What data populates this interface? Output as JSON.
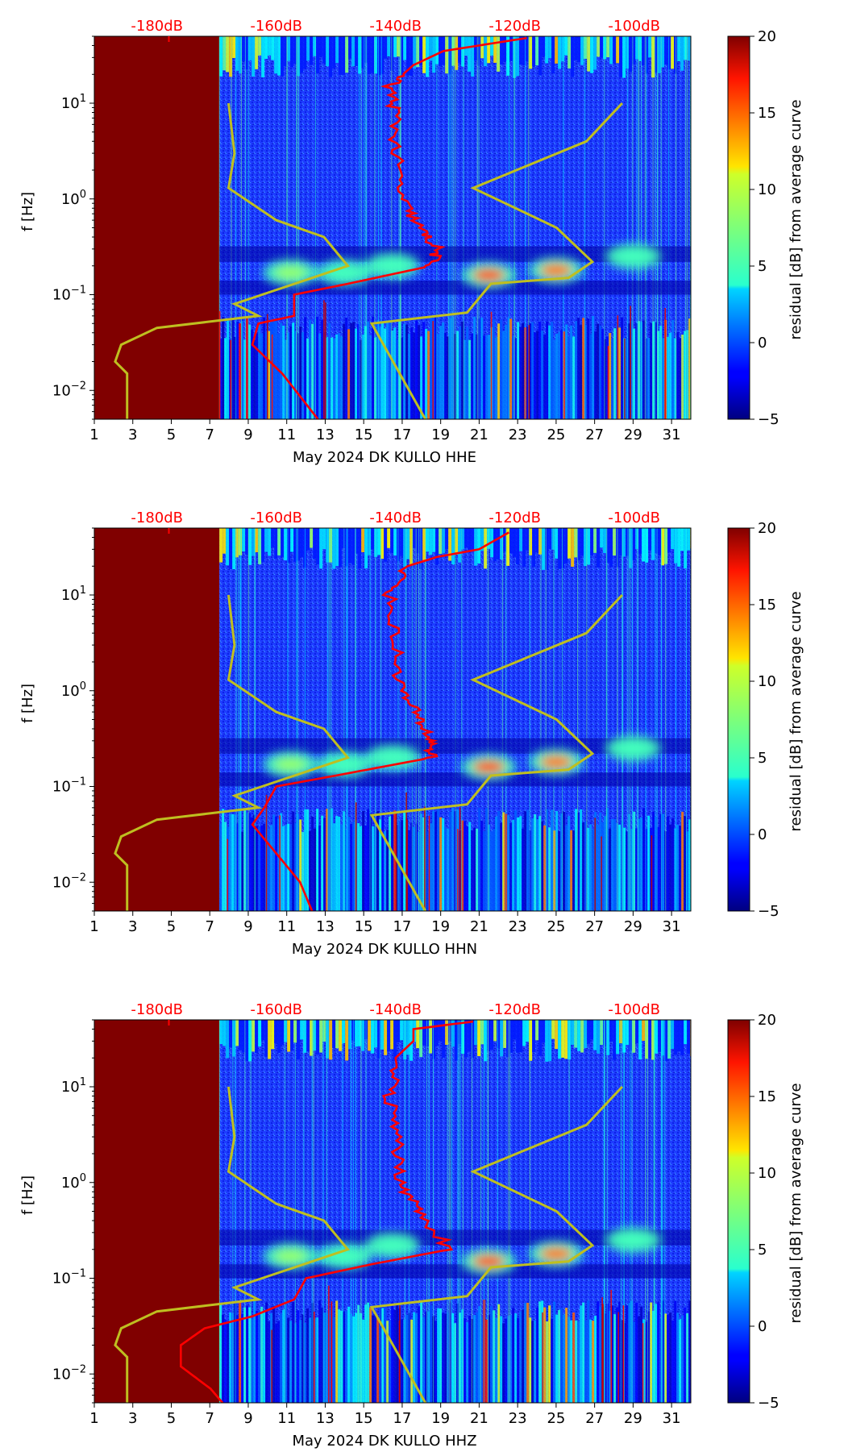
{
  "chart_data": [
    {
      "type": "heatmap",
      "channel": "HHE",
      "xlabel": "May 2024 DK KULLO  HHE",
      "ylabel": "f [Hz]",
      "xlim": [
        1,
        32
      ],
      "ylim_hz": [
        0.005,
        50
      ],
      "yscale": "log",
      "x_ticks": [
        "1",
        "3",
        "5",
        "7",
        "9",
        "11",
        "13",
        "15",
        "17",
        "19",
        "21",
        "23",
        "25",
        "27",
        "29",
        "31"
      ],
      "y_ticks": [
        {
          "base": "10",
          "exp": "1",
          "value": 10
        },
        {
          "base": "10",
          "exp": "0",
          "value": 1
        },
        {
          "base": "10",
          "exp": "−1",
          "value": 0.1
        },
        {
          "base": "10",
          "exp": "−2",
          "value": 0.01
        }
      ],
      "top_axis_ticks": [
        "-180dB",
        "-160dB",
        "-140dB",
        "-120dB",
        "-100dB"
      ],
      "top_axis_db_values": [
        -180,
        -160,
        -140,
        -120,
        -100
      ],
      "data_start_day": 7.5,
      "colorbar": {
        "label": "residual [dB] from average curve",
        "min": -5,
        "max": 20,
        "ticks": [
          "−5",
          "0",
          "5",
          "10",
          "15",
          "20"
        ],
        "tick_values": [
          -5,
          0,
          5,
          10,
          15,
          20
        ]
      },
      "hot_spots": [
        {
          "day": 11.2,
          "hz": 0.17,
          "level": 8
        },
        {
          "day": 14.0,
          "hz": 0.17,
          "level": 6
        },
        {
          "day": 16.5,
          "hz": 0.2,
          "level": 6
        },
        {
          "day": 21.5,
          "hz": 0.16,
          "level": 15
        },
        {
          "day": 25.0,
          "hz": 0.18,
          "level": 14
        },
        {
          "day": 29.0,
          "hz": 0.25,
          "level": 6
        }
      ],
      "yellow_curve_db_hz": [
        {
          "db": -168,
          "hz": 10
        },
        {
          "db": -167,
          "hz": 3
        },
        {
          "db": -168,
          "hz": 1.3
        },
        {
          "db": -160,
          "hz": 0.6
        },
        {
          "db": -152,
          "hz": 0.4
        },
        {
          "db": -148,
          "hz": 0.2
        },
        {
          "db": -167,
          "hz": 0.08
        },
        {
          "db": -163,
          "hz": 0.06
        },
        {
          "db": -180,
          "hz": 0.045
        },
        {
          "db": -186,
          "hz": 0.03
        },
        {
          "db": -187,
          "hz": 0.02
        },
        {
          "db": -185,
          "hz": 0.015
        },
        {
          "db": -185,
          "hz": 0.005
        },
        {
          "db": -102,
          "hz": 10
        },
        {
          "db": -108,
          "hz": 4
        },
        {
          "db": -127,
          "hz": 1.3
        },
        {
          "db": -113,
          "hz": 0.5
        },
        {
          "db": -107,
          "hz": 0.22
        },
        {
          "db": -111,
          "hz": 0.15
        },
        {
          "db": -124,
          "hz": 0.13
        },
        {
          "db": -128,
          "hz": 0.065
        },
        {
          "db": -144,
          "hz": 0.05
        },
        {
          "db": -135,
          "hz": 0.005
        }
      ],
      "red_curve_db_hz": [
        {
          "db": -118,
          "hz": 48
        },
        {
          "db": -132,
          "hz": 35
        },
        {
          "db": -137,
          "hz": 25
        },
        {
          "db": -141,
          "hz": 15
        },
        {
          "db": -140,
          "hz": 8
        },
        {
          "db": -140,
          "hz": 3
        },
        {
          "db": -139,
          "hz": 1
        },
        {
          "db": -136,
          "hz": 0.5
        },
        {
          "db": -133,
          "hz": 0.3
        },
        {
          "db": -134,
          "hz": 0.2
        },
        {
          "db": -148,
          "hz": 0.13
        },
        {
          "db": -157,
          "hz": 0.1
        },
        {
          "db": -157,
          "hz": 0.06
        },
        {
          "db": -163,
          "hz": 0.05
        },
        {
          "db": -164,
          "hz": 0.03
        },
        {
          "db": -159,
          "hz": 0.015
        },
        {
          "db": -153,
          "hz": 0.005
        }
      ]
    },
    {
      "type": "heatmap",
      "channel": "HHN",
      "xlabel": "May 2024 DK KULLO  HHN",
      "ylabel": "f [Hz]",
      "xlim": [
        1,
        32
      ],
      "ylim_hz": [
        0.005,
        50
      ],
      "yscale": "log",
      "x_ticks": [
        "1",
        "3",
        "5",
        "7",
        "9",
        "11",
        "13",
        "15",
        "17",
        "19",
        "21",
        "23",
        "25",
        "27",
        "29",
        "31"
      ],
      "y_ticks": [
        {
          "base": "10",
          "exp": "1",
          "value": 10
        },
        {
          "base": "10",
          "exp": "0",
          "value": 1
        },
        {
          "base": "10",
          "exp": "−1",
          "value": 0.1
        },
        {
          "base": "10",
          "exp": "−2",
          "value": 0.01
        }
      ],
      "top_axis_ticks": [
        "-180dB",
        "-160dB",
        "-140dB",
        "-120dB",
        "-100dB"
      ],
      "top_axis_db_values": [
        -180,
        -160,
        -140,
        -120,
        -100
      ],
      "data_start_day": 7.5,
      "colorbar": {
        "label": "residual [dB] from average curve",
        "min": -5,
        "max": 20,
        "ticks": [
          "−5",
          "0",
          "5",
          "10",
          "15",
          "20"
        ],
        "tick_values": [
          -5,
          0,
          5,
          10,
          15,
          20
        ]
      },
      "hot_spots": [
        {
          "day": 11.2,
          "hz": 0.17,
          "level": 8
        },
        {
          "day": 14.0,
          "hz": 0.17,
          "level": 6
        },
        {
          "day": 16.5,
          "hz": 0.2,
          "level": 6
        },
        {
          "day": 21.5,
          "hz": 0.16,
          "level": 15
        },
        {
          "day": 25.0,
          "hz": 0.18,
          "level": 14
        },
        {
          "day": 29.0,
          "hz": 0.25,
          "level": 6
        }
      ],
      "yellow_curve_db_hz": [
        {
          "db": -168,
          "hz": 10
        },
        {
          "db": -167,
          "hz": 3
        },
        {
          "db": -168,
          "hz": 1.3
        },
        {
          "db": -160,
          "hz": 0.6
        },
        {
          "db": -152,
          "hz": 0.4
        },
        {
          "db": -148,
          "hz": 0.2
        },
        {
          "db": -167,
          "hz": 0.08
        },
        {
          "db": -163,
          "hz": 0.06
        },
        {
          "db": -180,
          "hz": 0.045
        },
        {
          "db": -186,
          "hz": 0.03
        },
        {
          "db": -187,
          "hz": 0.02
        },
        {
          "db": -185,
          "hz": 0.015
        },
        {
          "db": -185,
          "hz": 0.005
        },
        {
          "db": -102,
          "hz": 10
        },
        {
          "db": -108,
          "hz": 4
        },
        {
          "db": -127,
          "hz": 1.3
        },
        {
          "db": -113,
          "hz": 0.5
        },
        {
          "db": -107,
          "hz": 0.22
        },
        {
          "db": -111,
          "hz": 0.15
        },
        {
          "db": -124,
          "hz": 0.13
        },
        {
          "db": -128,
          "hz": 0.065
        },
        {
          "db": -144,
          "hz": 0.05
        },
        {
          "db": -135,
          "hz": 0.005
        }
      ],
      "red_curve_db_hz": [
        {
          "db": -121,
          "hz": 45
        },
        {
          "db": -126,
          "hz": 30
        },
        {
          "db": -133,
          "hz": 25
        },
        {
          "db": -138,
          "hz": 20
        },
        {
          "db": -141,
          "hz": 10
        },
        {
          "db": -140,
          "hz": 3
        },
        {
          "db": -139,
          "hz": 1
        },
        {
          "db": -136,
          "hz": 0.5
        },
        {
          "db": -134,
          "hz": 0.3
        },
        {
          "db": -134,
          "hz": 0.2
        },
        {
          "db": -150,
          "hz": 0.13
        },
        {
          "db": -160,
          "hz": 0.1
        },
        {
          "db": -162,
          "hz": 0.06
        },
        {
          "db": -164,
          "hz": 0.04
        },
        {
          "db": -160,
          "hz": 0.02
        },
        {
          "db": -156,
          "hz": 0.01
        },
        {
          "db": -154,
          "hz": 0.005
        }
      ]
    },
    {
      "type": "heatmap",
      "channel": "HHZ",
      "xlabel": "May 2024 DK KULLO  HHZ",
      "ylabel": "f [Hz]",
      "xlim": [
        1,
        32
      ],
      "ylim_hz": [
        0.005,
        50
      ],
      "yscale": "log",
      "x_ticks": [
        "1",
        "3",
        "5",
        "7",
        "9",
        "11",
        "13",
        "15",
        "17",
        "19",
        "21",
        "23",
        "25",
        "27",
        "29",
        "31"
      ],
      "y_ticks": [
        {
          "base": "10",
          "exp": "1",
          "value": 10
        },
        {
          "base": "10",
          "exp": "0",
          "value": 1
        },
        {
          "base": "10",
          "exp": "−1",
          "value": 0.1
        },
        {
          "base": "10",
          "exp": "−2",
          "value": 0.01
        }
      ],
      "top_axis_ticks": [
        "-180dB",
        "-160dB",
        "-140dB",
        "-120dB",
        "-100dB"
      ],
      "top_axis_db_values": [
        -180,
        -160,
        -140,
        -120,
        -100
      ],
      "data_start_day": 7.5,
      "colorbar": {
        "label": "residual [dB] from average curve",
        "min": -5,
        "max": 20,
        "ticks": [
          "−5",
          "0",
          "5",
          "10",
          "15",
          "20"
        ],
        "tick_values": [
          -5,
          0,
          5,
          10,
          15,
          20
        ]
      },
      "hot_spots": [
        {
          "day": 11.2,
          "hz": 0.17,
          "level": 8
        },
        {
          "day": 14.0,
          "hz": 0.17,
          "level": 6
        },
        {
          "day": 16.5,
          "hz": 0.22,
          "level": 6
        },
        {
          "day": 21.5,
          "hz": 0.15,
          "level": 15
        },
        {
          "day": 25.0,
          "hz": 0.18,
          "level": 14
        },
        {
          "day": 29.0,
          "hz": 0.25,
          "level": 6
        }
      ],
      "yellow_curve_db_hz": [
        {
          "db": -168,
          "hz": 10
        },
        {
          "db": -167,
          "hz": 3
        },
        {
          "db": -168,
          "hz": 1.3
        },
        {
          "db": -160,
          "hz": 0.6
        },
        {
          "db": -152,
          "hz": 0.4
        },
        {
          "db": -148,
          "hz": 0.2
        },
        {
          "db": -167,
          "hz": 0.08
        },
        {
          "db": -163,
          "hz": 0.06
        },
        {
          "db": -180,
          "hz": 0.045
        },
        {
          "db": -186,
          "hz": 0.03
        },
        {
          "db": -187,
          "hz": 0.02
        },
        {
          "db": -185,
          "hz": 0.015
        },
        {
          "db": -185,
          "hz": 0.005
        },
        {
          "db": -102,
          "hz": 10
        },
        {
          "db": -108,
          "hz": 4
        },
        {
          "db": -127,
          "hz": 1.3
        },
        {
          "db": -113,
          "hz": 0.5
        },
        {
          "db": -107,
          "hz": 0.22
        },
        {
          "db": -111,
          "hz": 0.15
        },
        {
          "db": -124,
          "hz": 0.13
        },
        {
          "db": -128,
          "hz": 0.065
        },
        {
          "db": -144,
          "hz": 0.05
        },
        {
          "db": -135,
          "hz": 0.005
        }
      ],
      "red_curve_db_hz": [
        {
          "db": -127,
          "hz": 48
        },
        {
          "db": -137,
          "hz": 40
        },
        {
          "db": -137,
          "hz": 30
        },
        {
          "db": -140,
          "hz": 20
        },
        {
          "db": -141,
          "hz": 8
        },
        {
          "db": -140,
          "hz": 3
        },
        {
          "db": -139,
          "hz": 1
        },
        {
          "db": -136,
          "hz": 0.5
        },
        {
          "db": -131,
          "hz": 0.2
        },
        {
          "db": -144,
          "hz": 0.14
        },
        {
          "db": -155,
          "hz": 0.1
        },
        {
          "db": -157,
          "hz": 0.06
        },
        {
          "db": -164,
          "hz": 0.04
        },
        {
          "db": -172,
          "hz": 0.03
        },
        {
          "db": -176,
          "hz": 0.02
        },
        {
          "db": -176,
          "hz": 0.012
        },
        {
          "db": -171,
          "hz": 0.007
        },
        {
          "db": -169,
          "hz": 0.005
        }
      ]
    }
  ]
}
